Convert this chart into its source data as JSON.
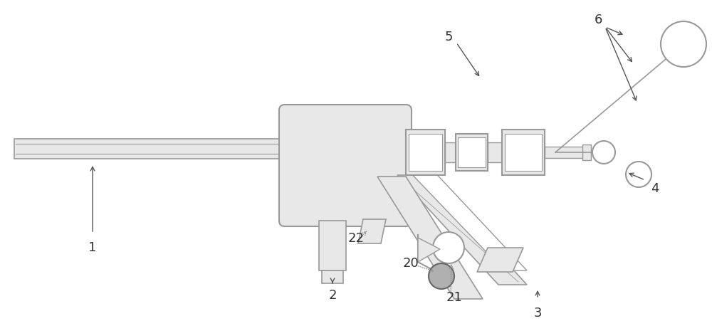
{
  "bg_color": "#ffffff",
  "lc": "#999999",
  "lc2": "#aaaaaa",
  "lf": "#e8e8e8",
  "gf": "#b0b0b0",
  "dc": "#666666",
  "label_color": "#333333",
  "label_fs": 13
}
